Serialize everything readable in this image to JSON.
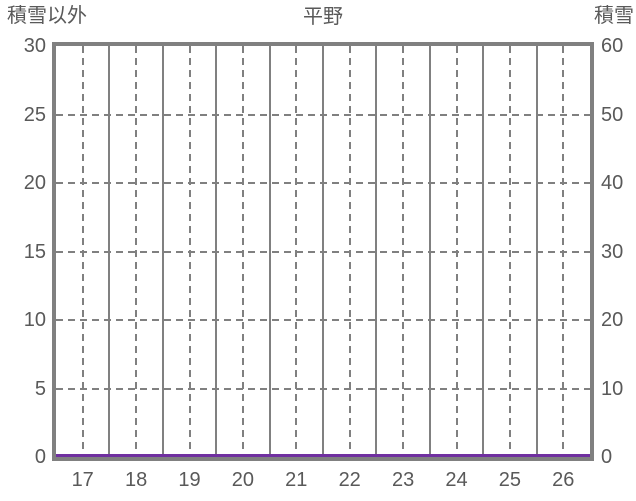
{
  "chart_data": {
    "type": "line",
    "title": "平野",
    "left_axis": {
      "label": "積雪以外",
      "min": 0,
      "max": 30,
      "step": 5,
      "ticks": [
        30,
        25,
        20,
        15,
        10,
        5,
        0
      ]
    },
    "right_axis": {
      "label": "積雪",
      "min": 0,
      "max": 60,
      "step": 10,
      "ticks": [
        60,
        50,
        40,
        30,
        20,
        10,
        0
      ]
    },
    "x_tick_labels": [
      "17",
      "18",
      "19",
      "20",
      "21",
      "22",
      "23",
      "24",
      "25",
      "26"
    ],
    "series": [
      {
        "axis": "left",
        "color": "#7030A0",
        "values": [
          0,
          0,
          0,
          0,
          0,
          0,
          0,
          0,
          0,
          0
        ]
      }
    ],
    "legend_position": "none",
    "grid": {
      "horizontal_dashed_at_every_tick": true,
      "vertical_solid_at_category_boundaries": true,
      "vertical_dashed_at_category_midpoints": true
    },
    "colors": {
      "grid": "#808080",
      "border": "#808080",
      "text": "#595959",
      "background": "#FFFFFF"
    }
  }
}
